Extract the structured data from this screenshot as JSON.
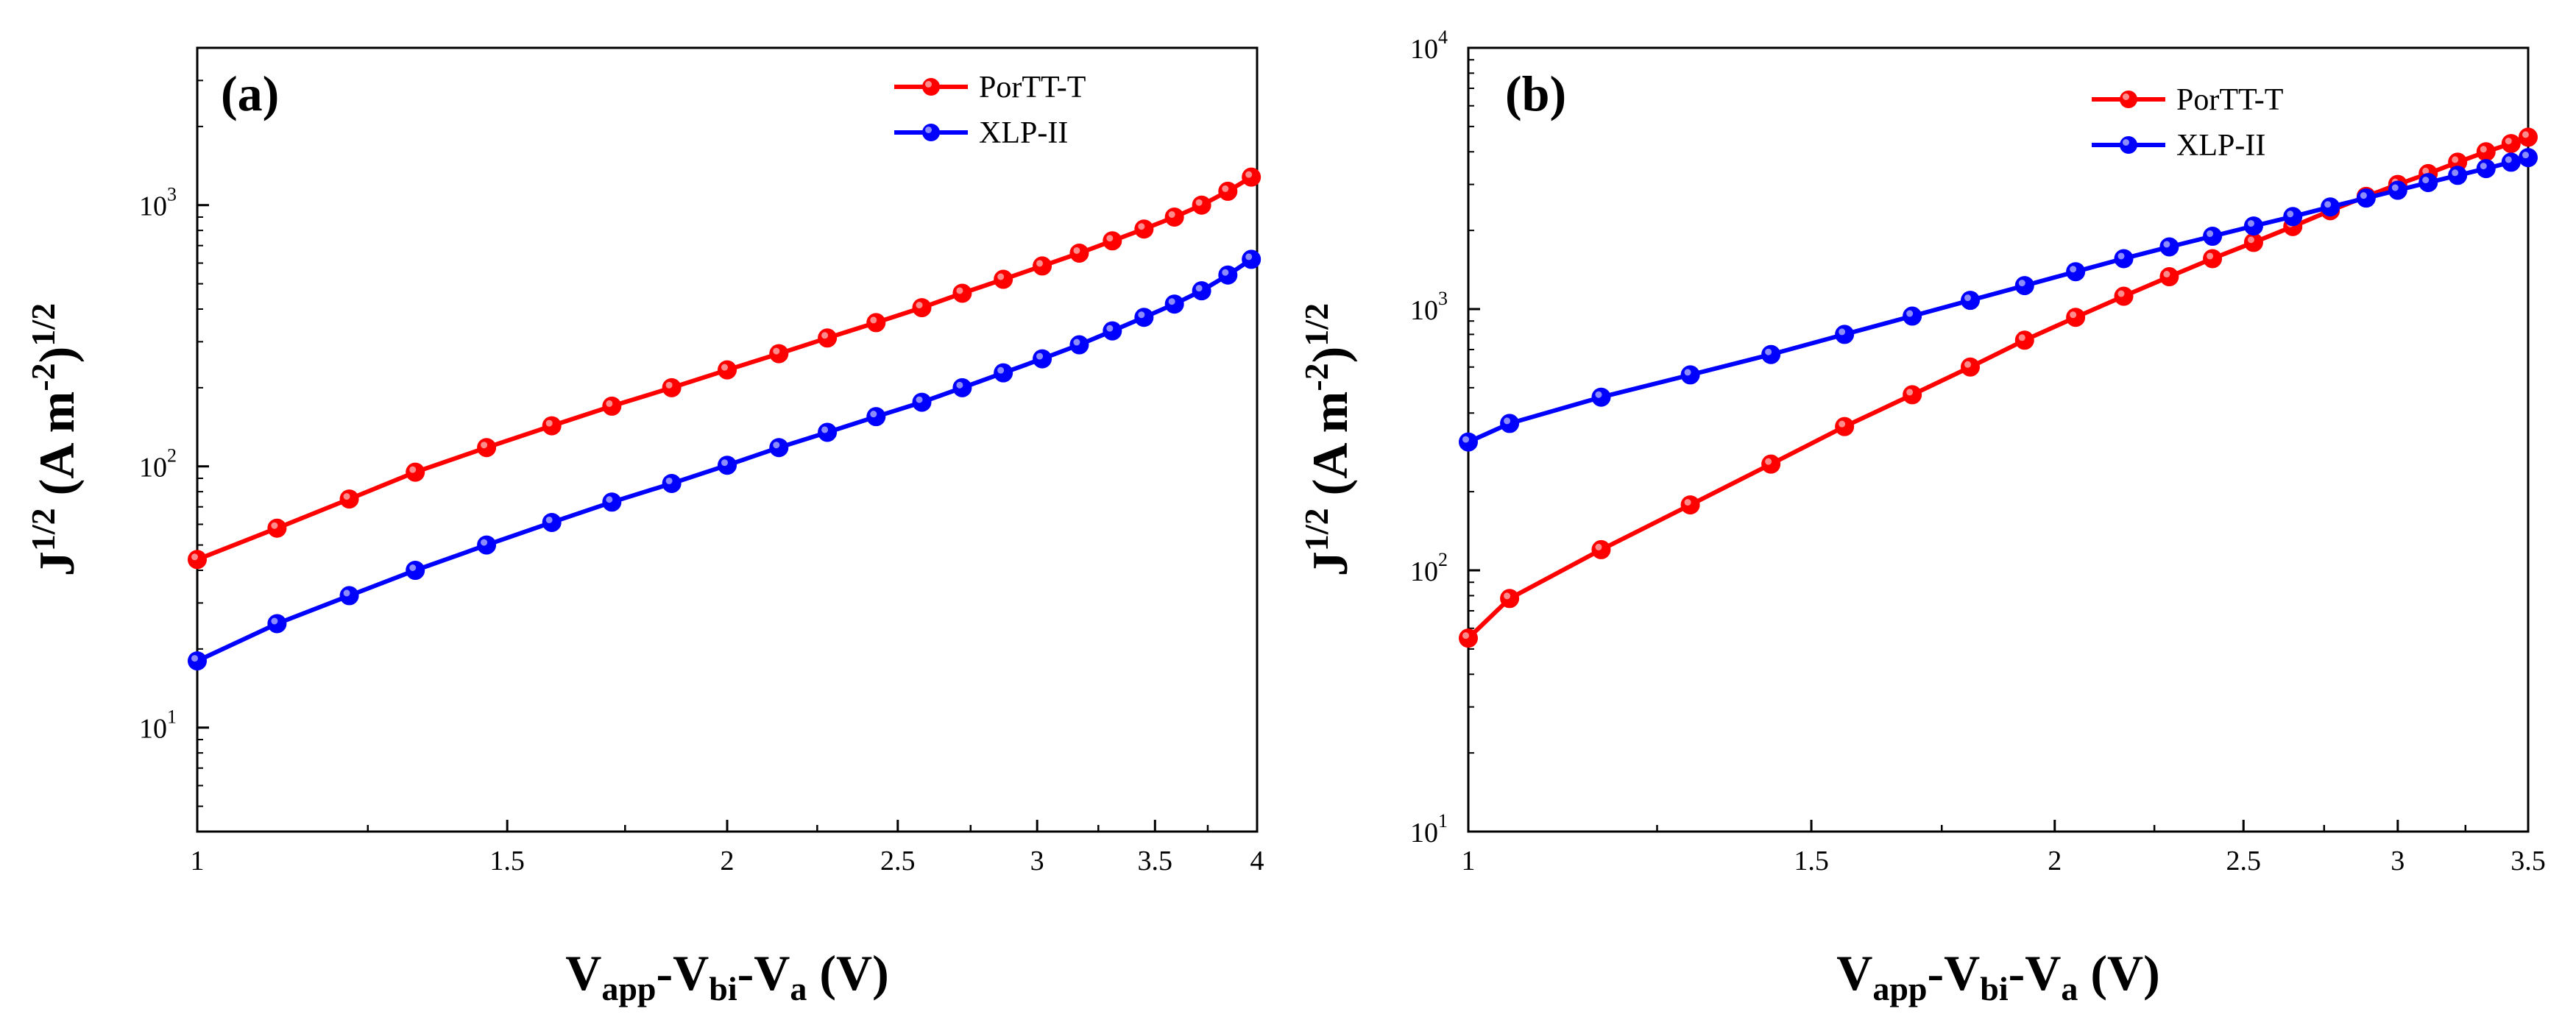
{
  "chart_data": [
    {
      "type": "line",
      "panel_label": "(a)",
      "xscale": "log",
      "yscale": "log",
      "xlim": [
        1,
        4
      ],
      "ylim": [
        4,
        4000
      ],
      "x_ticks": [
        1,
        1.5,
        2,
        2.5,
        3,
        3.5,
        4
      ],
      "x_tick_labels": [
        "1",
        "1.5",
        "2",
        "2.5",
        "3",
        "3.5",
        "4"
      ],
      "y_ticks": [
        10,
        100,
        1000
      ],
      "y_tick_bases": [
        "10",
        "10",
        "10"
      ],
      "y_tick_exponents": [
        "1",
        "2",
        "3"
      ],
      "xlabel": {
        "main1": "V",
        "sub1": "app",
        "main2": "-V",
        "sub2": "bi",
        "main3": "-V",
        "sub3": "a",
        "main4": " (V)"
      },
      "ylabel": {
        "part1": "J",
        "part2": "1/2",
        "part3": " (A m",
        "part4": "-2",
        "part5": ")",
        "part6": "1/2"
      },
      "legend_position": "top-right",
      "series": [
        {
          "name": "PorTT-T",
          "color": "#ff0000",
          "x": [
            1.0,
            1.11,
            1.22,
            1.33,
            1.46,
            1.59,
            1.72,
            1.86,
            2.0,
            2.14,
            2.28,
            2.43,
            2.58,
            2.72,
            2.87,
            3.02,
            3.17,
            3.31,
            3.45,
            3.59,
            3.72,
            3.85,
            3.97
          ],
          "values": [
            44,
            58,
            75,
            95,
            118,
            143,
            170,
            200,
            234,
            270,
            310,
            355,
            405,
            460,
            520,
            585,
            655,
            730,
            810,
            900,
            1000,
            1130,
            1280
          ]
        },
        {
          "name": "XLP-II",
          "color": "#0000ff",
          "x": [
            1.0,
            1.11,
            1.22,
            1.33,
            1.46,
            1.59,
            1.72,
            1.86,
            2.0,
            2.14,
            2.28,
            2.43,
            2.58,
            2.72,
            2.87,
            3.02,
            3.17,
            3.31,
            3.45,
            3.59,
            3.72,
            3.85,
            3.97
          ],
          "values": [
            18,
            25,
            32,
            40,
            50,
            61,
            73,
            86,
            101,
            118,
            135,
            155,
            176,
            200,
            228,
            258,
            292,
            330,
            372,
            418,
            470,
            540,
            620
          ]
        }
      ]
    },
    {
      "type": "line",
      "panel_label": "(b)",
      "xscale": "log",
      "yscale": "log",
      "xlim": [
        1,
        3.5
      ],
      "ylim": [
        10,
        10000
      ],
      "x_ticks": [
        1,
        1.5,
        2,
        2.5,
        3,
        3.5
      ],
      "x_tick_labels": [
        "1",
        "1.5",
        "2",
        "2.5",
        "3",
        "3.5"
      ],
      "y_ticks": [
        10,
        100,
        1000,
        10000
      ],
      "y_tick_bases": [
        "10",
        "10",
        "10",
        "10"
      ],
      "y_tick_exponents": [
        "1",
        "2",
        "3",
        "4"
      ],
      "xlabel": {
        "main1": "V",
        "sub1": "app",
        "main2": "-V",
        "sub2": "bi",
        "main3": "-V",
        "sub3": "a",
        "main4": " (V)"
      },
      "ylabel": {
        "part1": "J",
        "part2": "1/2",
        "part3": " (A m",
        "part4": "-2",
        "part5": ")",
        "part6": "1/2"
      },
      "legend_position": "top-right",
      "series": [
        {
          "name": "PorTT-T",
          "color": "#ff0000",
          "x": [
            1.0,
            1.05,
            1.17,
            1.3,
            1.43,
            1.56,
            1.69,
            1.81,
            1.93,
            2.05,
            2.17,
            2.29,
            2.41,
            2.53,
            2.65,
            2.77,
            2.89,
            3.0,
            3.11,
            3.22,
            3.33,
            3.43,
            3.5
          ],
          "values": [
            55,
            78,
            120,
            178,
            255,
            355,
            470,
            600,
            760,
            930,
            1120,
            1330,
            1560,
            1800,
            2070,
            2380,
            2700,
            3000,
            3300,
            3650,
            4000,
            4300,
            4550
          ]
        },
        {
          "name": "XLP-II",
          "color": "#0000ff",
          "x": [
            1.0,
            1.05,
            1.17,
            1.3,
            1.43,
            1.56,
            1.69,
            1.81,
            1.93,
            2.05,
            2.17,
            2.29,
            2.41,
            2.53,
            2.65,
            2.77,
            2.89,
            3.0,
            3.11,
            3.22,
            3.33,
            3.43,
            3.5
          ],
          "values": [
            310,
            365,
            460,
            560,
            670,
            800,
            940,
            1080,
            1230,
            1390,
            1560,
            1730,
            1900,
            2080,
            2260,
            2460,
            2660,
            2850,
            3050,
            3250,
            3450,
            3650,
            3800
          ]
        }
      ]
    }
  ]
}
